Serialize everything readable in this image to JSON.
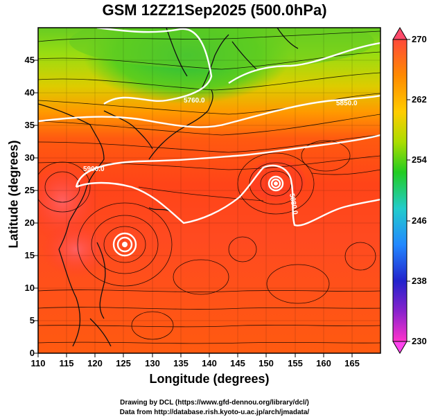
{
  "title": "GSM 12Z21Sep2025 (500.0hPa)",
  "axes": {
    "xlabel": "Longitude (degrees)",
    "ylabel": "Latitude  (degrees)",
    "xlim": [
      110,
      170
    ],
    "ylim": [
      0,
      50
    ],
    "xticks": [
      "110",
      "115",
      "120",
      "125",
      "130",
      "135",
      "140",
      "145",
      "150",
      "155",
      "160",
      "165"
    ],
    "yticks": [
      "0",
      "5",
      "10",
      "15",
      "20",
      "25",
      "30",
      "35",
      "40",
      "45"
    ]
  },
  "colorbar": {
    "labels": [
      "270",
      "262",
      "254",
      "246",
      "238",
      "230"
    ],
    "min": 230,
    "max": 270
  },
  "contours": [
    {
      "label": "5760.0"
    },
    {
      "label": "5850.0"
    },
    {
      "label": "5900.0"
    },
    {
      "label": "5880.0"
    }
  ],
  "cyclones": [
    {
      "name": "typhoon-center-west",
      "lon": 125.5,
      "lat": 18.5
    },
    {
      "name": "typhoon-center-east",
      "lon": 151.3,
      "lat": 28.3
    }
  ],
  "credits": {
    "line1": "Drawing by DCL (https://www.gfd-dennou.org/library/dcl/)",
    "line2": "Data from http://database.rish.kyoto-u.ac.jp/arch/jmadata/"
  },
  "colors": {
    "warm": "#ff4a1e",
    "mid": "#ff9a00",
    "cold": "#33cc33",
    "contour": "#ffffff"
  }
}
